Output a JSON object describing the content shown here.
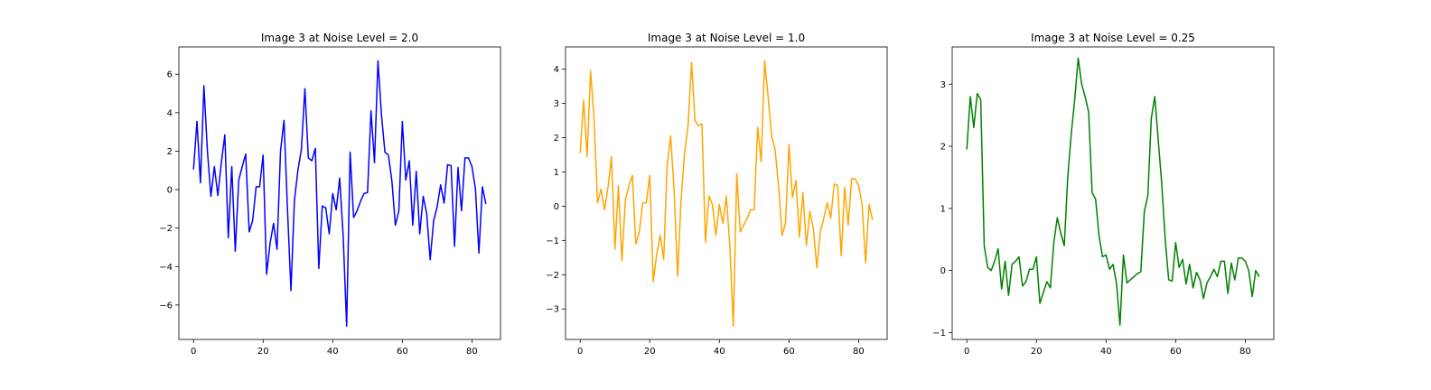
{
  "chart_data": [
    {
      "type": "line",
      "title": "Image 3 at Noise Level = 2.0",
      "xlabel": "",
      "ylabel": "",
      "color": "#0000ff",
      "xlim": [
        -4.2,
        88.2
      ],
      "ylim": [
        -7.79,
        7.42
      ],
      "xticks": [
        0,
        20,
        40,
        60,
        80
      ],
      "yticks": [
        -6,
        -4,
        -2,
        0,
        2,
        4,
        6
      ],
      "grid": false,
      "x": [
        0,
        1,
        2,
        3,
        4,
        5,
        6,
        7,
        8,
        9,
        10,
        11,
        12,
        13,
        14,
        15,
        16,
        17,
        18,
        19,
        20,
        21,
        22,
        23,
        24,
        25,
        26,
        27,
        28,
        29,
        30,
        31,
        32,
        33,
        34,
        35,
        36,
        37,
        38,
        39,
        40,
        41,
        42,
        43,
        44,
        45,
        46,
        47,
        48,
        49,
        50,
        51,
        52,
        53,
        54,
        55,
        56,
        57,
        58,
        59,
        60,
        61,
        62,
        63,
        64,
        65,
        66,
        67,
        68,
        69,
        70,
        71,
        72,
        73,
        74,
        75,
        76,
        77,
        78,
        79,
        80,
        81,
        82,
        83,
        84
      ],
      "y": [
        1.05,
        3.55,
        0.35,
        5.4,
        2.0,
        -0.35,
        1.2,
        -0.3,
        1.4,
        2.85,
        -2.5,
        1.2,
        -3.2,
        0.5,
        1.2,
        1.85,
        -2.2,
        -1.6,
        0.15,
        0.15,
        1.8,
        -4.4,
        -2.8,
        -1.75,
        -3.1,
        2.0,
        3.6,
        -1.0,
        -5.25,
        -0.55,
        1.0,
        2.1,
        5.25,
        1.65,
        1.5,
        2.15,
        -4.1,
        -0.85,
        -0.95,
        -2.3,
        -0.2,
        -1.05,
        0.6,
        -2.4,
        -7.1,
        1.95,
        -1.45,
        -1.1,
        -0.6,
        -0.2,
        -0.15,
        4.1,
        1.4,
        6.7,
        3.9,
        1.95,
        1.8,
        0.45,
        -1.85,
        -1.1,
        3.55,
        0.5,
        1.5,
        -1.85,
        0.95,
        -2.3,
        -0.35,
        -1.25,
        -3.65,
        -1.6,
        -0.9,
        0.25,
        -0.7,
        1.3,
        1.25,
        -2.95,
        1.15,
        -1.1,
        1.65,
        1.65,
        1.2,
        0.05,
        -3.3,
        0.15,
        -0.75
      ]
    },
    {
      "type": "line",
      "title": "Image 3 at Noise Level = 1.0",
      "xlabel": "",
      "ylabel": "",
      "color": "#ffa500",
      "xlim": [
        -4.2,
        88.2
      ],
      "ylim": [
        -3.89,
        4.65
      ],
      "xticks": [
        0,
        20,
        40,
        60,
        80
      ],
      "yticks": [
        -3,
        -2,
        -1,
        0,
        1,
        2,
        3,
        4
      ],
      "grid": false,
      "x": [
        0,
        1,
        2,
        3,
        4,
        5,
        6,
        7,
        8,
        9,
        10,
        11,
        12,
        13,
        14,
        15,
        16,
        17,
        18,
        19,
        20,
        21,
        22,
        23,
        24,
        25,
        26,
        27,
        28,
        29,
        30,
        31,
        32,
        33,
        34,
        35,
        36,
        37,
        38,
        39,
        40,
        41,
        42,
        43,
        44,
        45,
        46,
        47,
        48,
        49,
        50,
        51,
        52,
        53,
        54,
        55,
        56,
        57,
        58,
        59,
        60,
        61,
        62,
        63,
        64,
        65,
        66,
        67,
        68,
        69,
        70,
        71,
        72,
        73,
        74,
        75,
        76,
        77,
        78,
        79,
        80,
        81,
        82,
        83,
        84
      ],
      "y": [
        1.55,
        3.1,
        1.45,
        3.95,
        2.55,
        0.1,
        0.5,
        -0.1,
        0.55,
        1.45,
        -1.25,
        0.6,
        -1.6,
        0.2,
        0.6,
        0.9,
        -1.1,
        -0.75,
        0.1,
        0.1,
        0.9,
        -2.2,
        -1.4,
        -0.85,
        -1.55,
        1.2,
        2.05,
        0.45,
        -2.05,
        0.2,
        1.55,
        2.35,
        4.2,
        2.5,
        2.35,
        2.4,
        -1.05,
        0.3,
        0.05,
        -0.85,
        0.05,
        -0.5,
        0.3,
        -1.15,
        -3.5,
        0.95,
        -0.75,
        -0.55,
        -0.35,
        -0.1,
        -0.1,
        2.3,
        1.3,
        4.25,
        3.2,
        2.05,
        1.65,
        0.6,
        -0.85,
        -0.5,
        1.8,
        0.25,
        0.75,
        -0.9,
        0.4,
        -1.15,
        -0.15,
        -0.65,
        -1.8,
        -0.75,
        -0.35,
        0.1,
        -0.35,
        0.65,
        0.6,
        -1.45,
        0.55,
        -0.55,
        0.8,
        0.8,
        0.6,
        0.05,
        -1.65,
        0.05,
        -0.4
      ]
    },
    {
      "type": "line",
      "title": "Image 3 at Noise Level = 0.25",
      "xlabel": "",
      "ylabel": "",
      "color": "#008000",
      "xlim": [
        -4.2,
        88.2
      ],
      "ylim": [
        -1.11,
        3.6
      ],
      "xticks": [
        0,
        20,
        40,
        60,
        80
      ],
      "yticks": [
        -1,
        0,
        1,
        2,
        3
      ],
      "grid": false,
      "x": [
        0,
        1,
        2,
        3,
        4,
        5,
        6,
        7,
        8,
        9,
        10,
        11,
        12,
        13,
        14,
        15,
        16,
        17,
        18,
        19,
        20,
        21,
        22,
        23,
        24,
        25,
        26,
        27,
        28,
        29,
        30,
        31,
        32,
        33,
        34,
        35,
        36,
        37,
        38,
        39,
        40,
        41,
        42,
        43,
        44,
        45,
        46,
        47,
        48,
        49,
        50,
        51,
        52,
        53,
        54,
        55,
        56,
        57,
        58,
        59,
        60,
        61,
        62,
        63,
        64,
        65,
        66,
        67,
        68,
        69,
        70,
        71,
        72,
        73,
        74,
        75,
        76,
        77,
        78,
        79,
        80,
        81,
        82,
        83,
        84
      ],
      "y": [
        1.95,
        2.8,
        2.3,
        2.85,
        2.75,
        0.4,
        0.05,
        0.0,
        0.15,
        0.35,
        -0.3,
        0.15,
        -0.4,
        0.1,
        0.15,
        0.22,
        -0.25,
        -0.18,
        0.02,
        0.02,
        0.22,
        -0.53,
        -0.35,
        -0.18,
        -0.28,
        0.45,
        0.85,
        0.6,
        0.4,
        1.5,
        2.2,
        2.75,
        3.42,
        3.0,
        2.8,
        2.55,
        1.25,
        1.15,
        0.55,
        0.22,
        0.25,
        0.02,
        0.1,
        -0.2,
        -0.88,
        0.25,
        -0.2,
        -0.15,
        -0.1,
        -0.05,
        -0.02,
        0.95,
        1.2,
        2.45,
        2.8,
        2.1,
        1.4,
        0.5,
        -0.15,
        -0.17,
        0.45,
        0.05,
        0.18,
        -0.22,
        0.1,
        -0.28,
        -0.03,
        -0.15,
        -0.45,
        -0.2,
        -0.1,
        0.02,
        -0.1,
        0.15,
        0.15,
        -0.37,
        0.12,
        -0.15,
        0.2,
        0.2,
        0.15,
        0.0,
        -0.42,
        0.0,
        -0.1
      ]
    }
  ]
}
